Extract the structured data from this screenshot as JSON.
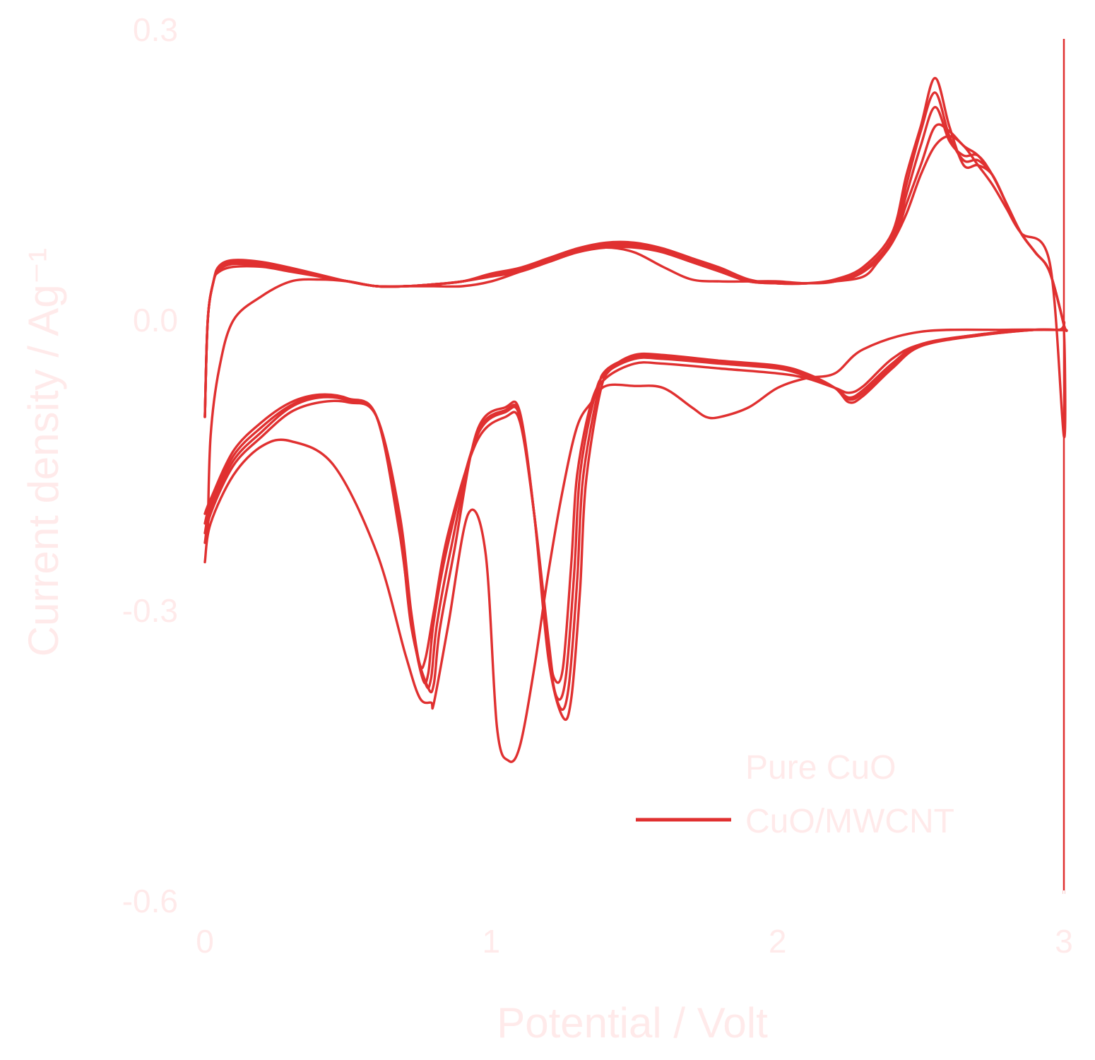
{
  "chart_data": {
    "type": "line",
    "title": "",
    "xlabel": "Potential / Volt",
    "ylabel": "Current density / Ag⁻¹",
    "xlim": [
      0,
      3
    ],
    "ylim": [
      -0.6,
      0.3
    ],
    "xticks": [
      "0",
      "1",
      "2",
      "3"
    ],
    "yticks": [
      "0.3",
      "0.0",
      "-0.3",
      "-0.6"
    ],
    "grid": false,
    "legend_position": "bottom-right",
    "colors": {
      "CuO/MWCNT": "#e03030",
      "Pure CuO": "#ffffff",
      "text": "#ffeaea"
    },
    "legend": [
      {
        "name": "Pure CuO",
        "color": "#ffffff"
      },
      {
        "name": "CuO/MWCNT",
        "color": "#e03030"
      }
    ],
    "series": [
      {
        "name": "CuO/MWCNT",
        "cycle": 1,
        "x": [
          0.0,
          0.02,
          0.1,
          0.2,
          0.3,
          0.45,
          0.6,
          0.7,
          0.75,
          0.79,
          0.8,
          0.85,
          0.92,
          0.98,
          1.02,
          1.06,
          1.1,
          1.15,
          1.2,
          1.25,
          1.3,
          1.35,
          1.4,
          1.5,
          1.6,
          1.7,
          1.75,
          1.8,
          1.9,
          2.0,
          2.1,
          2.2,
          2.3,
          2.5,
          2.8,
          2.98,
          3.0,
          3.0,
          2.95,
          2.85,
          2.8,
          2.75,
          2.7,
          2.65,
          2.6,
          2.55,
          2.5,
          2.45,
          2.4,
          2.35,
          2.3,
          2.2,
          2.1,
          2.0,
          1.9,
          1.8,
          1.7,
          1.6,
          1.5,
          1.4,
          1.3,
          1.2,
          1.1,
          1.0,
          0.9,
          0.8,
          0.7,
          0.6,
          0.5,
          0.4,
          0.3,
          0.2,
          0.1,
          0.05,
          0.02,
          0.01
        ],
        "y": [
          -0.25,
          -0.21,
          -0.16,
          -0.13,
          -0.125,
          -0.15,
          -0.24,
          -0.345,
          -0.39,
          -0.395,
          -0.395,
          -0.315,
          -0.2,
          -0.24,
          -0.42,
          -0.455,
          -0.44,
          -0.36,
          -0.26,
          -0.175,
          -0.11,
          -0.085,
          -0.068,
          -0.068,
          -0.07,
          -0.09,
          -0.1,
          -0.1,
          -0.09,
          -0.07,
          -0.06,
          -0.055,
          -0.03,
          -0.012,
          -0.01,
          -0.01,
          -0.01,
          -0.12,
          0.06,
          0.09,
          0.115,
          0.14,
          0.16,
          0.18,
          0.19,
          0.18,
          0.15,
          0.11,
          0.08,
          0.06,
          0.045,
          0.04,
          0.038,
          0.04,
          0.04,
          0.04,
          0.042,
          0.055,
          0.07,
          0.075,
          0.07,
          0.06,
          0.05,
          0.04,
          0.035,
          0.035,
          0.035,
          0.035,
          0.04,
          0.042,
          0.04,
          0.025,
          0.0,
          -0.05,
          -0.12,
          -0.22
        ]
      },
      {
        "name": "CuO/MWCNT",
        "cycle": 2,
        "x": [
          0.0,
          0.02,
          0.1,
          0.2,
          0.3,
          0.4,
          0.5,
          0.6,
          0.68,
          0.72,
          0.75,
          0.77,
          0.8,
          0.85,
          0.95,
          1.05,
          1.1,
          1.15,
          1.2,
          1.22,
          1.25,
          1.28,
          1.3,
          1.35,
          1.4,
          1.5,
          1.6,
          1.8,
          2.0,
          2.1,
          2.2,
          2.25,
          2.3,
          2.4,
          2.5,
          2.7,
          2.9,
          3.0,
          3.0,
          2.95,
          2.9,
          2.85,
          2.8,
          2.75,
          2.7,
          2.65,
          2.6,
          2.55,
          2.5,
          2.45,
          2.4,
          2.3,
          2.2,
          2.1,
          2.0,
          1.9,
          1.8,
          1.7,
          1.6,
          1.5,
          1.4,
          1.3,
          1.2,
          1.1,
          1.0,
          0.9,
          0.8,
          0.7,
          0.6,
          0.5,
          0.4,
          0.3,
          0.2,
          0.1,
          0.05,
          0.03,
          0.01,
          0.0
        ],
        "y": [
          -0.23,
          -0.2,
          -0.15,
          -0.12,
          -0.095,
          -0.085,
          -0.085,
          -0.1,
          -0.2,
          -0.3,
          -0.355,
          -0.35,
          -0.3,
          -0.22,
          -0.125,
          -0.1,
          -0.105,
          -0.2,
          -0.33,
          -0.37,
          -0.36,
          -0.25,
          -0.16,
          -0.085,
          -0.06,
          -0.045,
          -0.045,
          -0.05,
          -0.055,
          -0.06,
          -0.07,
          -0.075,
          -0.068,
          -0.04,
          -0.025,
          -0.015,
          -0.01,
          -0.01,
          -0.005,
          0.05,
          0.07,
          0.09,
          0.12,
          0.15,
          0.17,
          0.18,
          0.195,
          0.2,
          0.16,
          0.12,
          0.08,
          0.05,
          0.04,
          0.038,
          0.038,
          0.04,
          0.05,
          0.06,
          0.07,
          0.075,
          0.075,
          0.07,
          0.06,
          0.05,
          0.045,
          0.04,
          0.037,
          0.035,
          0.035,
          0.04,
          0.045,
          0.05,
          0.055,
          0.055,
          0.05,
          0.04,
          0.0,
          -0.1
        ]
      },
      {
        "name": "CuO/MWCNT",
        "cycle": 3,
        "x": [
          0.0,
          0.02,
          0.1,
          0.2,
          0.3,
          0.4,
          0.5,
          0.6,
          0.68,
          0.72,
          0.76,
          0.78,
          0.8,
          0.85,
          0.95,
          1.05,
          1.1,
          1.15,
          1.2,
          1.23,
          1.26,
          1.29,
          1.31,
          1.36,
          1.4,
          1.5,
          1.6,
          1.8,
          2.0,
          2.1,
          2.2,
          2.25,
          2.3,
          2.4,
          2.5,
          2.7,
          2.9,
          3.0,
          3.0,
          2.95,
          2.9,
          2.85,
          2.8,
          2.75,
          2.7,
          2.65,
          2.6,
          2.55,
          2.5,
          2.45,
          2.4,
          2.3,
          2.2,
          2.1,
          2.0,
          1.9,
          1.8,
          1.7,
          1.6,
          1.5,
          1.4,
          1.3,
          1.2,
          1.1,
          1.0,
          0.9,
          0.8,
          0.7,
          0.6,
          0.5,
          0.4,
          0.3,
          0.2,
          0.1,
          0.05,
          0.03,
          0.01,
          0.0
        ],
        "y": [
          -0.22,
          -0.195,
          -0.145,
          -0.115,
          -0.09,
          -0.08,
          -0.083,
          -0.1,
          -0.21,
          -0.31,
          -0.37,
          -0.365,
          -0.31,
          -0.23,
          -0.12,
          -0.095,
          -0.1,
          -0.2,
          -0.34,
          -0.39,
          -0.37,
          -0.26,
          -0.16,
          -0.08,
          -0.055,
          -0.04,
          -0.04,
          -0.045,
          -0.05,
          -0.058,
          -0.07,
          -0.08,
          -0.072,
          -0.045,
          -0.025,
          -0.015,
          -0.01,
          -0.01,
          -0.005,
          0.05,
          0.07,
          0.09,
          0.12,
          0.15,
          0.17,
          0.17,
          0.185,
          0.22,
          0.18,
          0.13,
          0.08,
          0.05,
          0.04,
          0.038,
          0.038,
          0.04,
          0.05,
          0.06,
          0.07,
          0.077,
          0.077,
          0.072,
          0.062,
          0.052,
          0.046,
          0.04,
          0.037,
          0.035,
          0.035,
          0.04,
          0.045,
          0.052,
          0.056,
          0.058,
          0.052,
          0.04,
          0.0,
          -0.1
        ]
      },
      {
        "name": "CuO/MWCNT",
        "cycle": 4,
        "x": [
          0.0,
          0.02,
          0.1,
          0.2,
          0.3,
          0.4,
          0.5,
          0.6,
          0.68,
          0.72,
          0.77,
          0.79,
          0.81,
          0.86,
          0.95,
          1.05,
          1.1,
          1.15,
          1.2,
          1.24,
          1.27,
          1.3,
          1.32,
          1.37,
          1.4,
          1.5,
          1.6,
          1.8,
          2.0,
          2.1,
          2.2,
          2.25,
          2.3,
          2.4,
          2.5,
          2.7,
          2.9,
          3.0,
          3.0,
          2.95,
          2.9,
          2.85,
          2.8,
          2.75,
          2.7,
          2.65,
          2.6,
          2.55,
          2.5,
          2.45,
          2.4,
          2.3,
          2.2,
          2.1,
          2.0,
          1.9,
          1.8,
          1.7,
          1.6,
          1.5,
          1.4,
          1.3,
          1.2,
          1.1,
          1.0,
          0.9,
          0.8,
          0.7,
          0.6,
          0.5,
          0.4,
          0.3,
          0.2,
          0.1,
          0.05,
          0.03,
          0.01,
          0.0
        ],
        "y": [
          -0.21,
          -0.19,
          -0.14,
          -0.11,
          -0.088,
          -0.078,
          -0.082,
          -0.1,
          -0.215,
          -0.315,
          -0.375,
          -0.37,
          -0.315,
          -0.235,
          -0.118,
          -0.093,
          -0.098,
          -0.2,
          -0.345,
          -0.4,
          -0.38,
          -0.27,
          -0.165,
          -0.078,
          -0.052,
          -0.038,
          -0.038,
          -0.043,
          -0.048,
          -0.056,
          -0.07,
          -0.082,
          -0.075,
          -0.048,
          -0.026,
          -0.016,
          -0.01,
          -0.01,
          -0.005,
          0.05,
          0.07,
          0.09,
          0.12,
          0.15,
          0.165,
          0.165,
          0.19,
          0.235,
          0.195,
          0.14,
          0.085,
          0.052,
          0.04,
          0.038,
          0.038,
          0.041,
          0.052,
          0.062,
          0.072,
          0.078,
          0.078,
          0.073,
          0.063,
          0.053,
          0.047,
          0.04,
          0.037,
          0.035,
          0.035,
          0.04,
          0.046,
          0.053,
          0.058,
          0.06,
          0.054,
          0.04,
          0.0,
          -0.1
        ]
      },
      {
        "name": "CuO/MWCNT",
        "cycle": 5,
        "x": [
          0.0,
          0.02,
          0.1,
          0.2,
          0.3,
          0.4,
          0.5,
          0.6,
          0.68,
          0.73,
          0.78,
          0.8,
          0.82,
          0.87,
          0.95,
          1.05,
          1.1,
          1.15,
          1.2,
          1.25,
          1.28,
          1.31,
          1.33,
          1.38,
          1.42,
          1.5,
          1.6,
          1.8,
          2.0,
          2.1,
          2.2,
          2.25,
          2.3,
          2.4,
          2.5,
          2.7,
          2.9,
          3.0,
          3.0,
          2.95,
          2.9,
          2.85,
          2.8,
          2.75,
          2.7,
          2.65,
          2.6,
          2.55,
          2.5,
          2.45,
          2.4,
          2.3,
          2.2,
          2.1,
          2.0,
          1.9,
          1.8,
          1.7,
          1.6,
          1.5,
          1.4,
          1.3,
          1.2,
          1.1,
          1.0,
          0.9,
          0.8,
          0.7,
          0.6,
          0.5,
          0.4,
          0.3,
          0.2,
          0.1,
          0.05,
          0.03,
          0.01,
          0.0
        ],
        "y": [
          -0.2,
          -0.185,
          -0.135,
          -0.105,
          -0.085,
          -0.077,
          -0.081,
          -0.1,
          -0.22,
          -0.33,
          -0.38,
          -0.375,
          -0.32,
          -0.24,
          -0.115,
          -0.09,
          -0.095,
          -0.2,
          -0.35,
          -0.41,
          -0.39,
          -0.28,
          -0.17,
          -0.075,
          -0.05,
          -0.036,
          -0.036,
          -0.042,
          -0.047,
          -0.055,
          -0.07,
          -0.085,
          -0.078,
          -0.05,
          -0.027,
          -0.016,
          -0.01,
          -0.01,
          -0.005,
          0.05,
          0.07,
          0.09,
          0.12,
          0.15,
          0.16,
          0.16,
          0.2,
          0.25,
          0.2,
          0.15,
          0.09,
          0.055,
          0.042,
          0.038,
          0.038,
          0.042,
          0.054,
          0.064,
          0.074,
          0.08,
          0.08,
          0.074,
          0.064,
          0.054,
          0.048,
          0.04,
          0.037,
          0.035,
          0.035,
          0.04,
          0.047,
          0.054,
          0.06,
          0.062,
          0.056,
          0.04,
          0.0,
          -0.1
        ]
      }
    ]
  }
}
